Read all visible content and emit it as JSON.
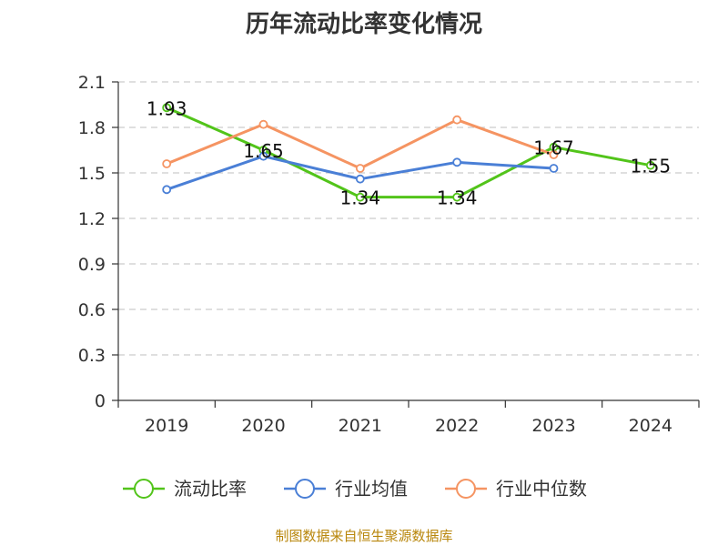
{
  "title": "历年流动比率变化情况",
  "source_note": "制图数据来自恒生聚源数据库",
  "colors": {
    "series": [
      "#52c41a",
      "#4a7fd6",
      "#f59462"
    ],
    "grid": "#cccccc",
    "axis": "#333333"
  },
  "chart_data": {
    "type": "line",
    "title": "历年流动比率变化情况",
    "categories": [
      "2019",
      "2020",
      "2021",
      "2022",
      "2023",
      "2024"
    ],
    "ylim": [
      0,
      2.1
    ],
    "yticks": [
      "0",
      "0.3",
      "0.6",
      "0.9",
      "1.2",
      "1.5",
      "1.8",
      "2.1"
    ],
    "grid": true,
    "legend_position": "bottom",
    "series": [
      {
        "name": "流动比率",
        "values": [
          1.93,
          1.65,
          1.34,
          1.34,
          1.67,
          1.55
        ],
        "labels": [
          "1.93",
          "1.65",
          "1.34",
          "1.34",
          "1.67",
          "1.55"
        ]
      },
      {
        "name": "行业均值",
        "values": [
          1.39,
          1.61,
          1.46,
          1.57,
          1.53,
          null
        ]
      },
      {
        "name": "行业中位数",
        "values": [
          1.56,
          1.82,
          1.53,
          1.85,
          1.62,
          null
        ]
      }
    ]
  }
}
